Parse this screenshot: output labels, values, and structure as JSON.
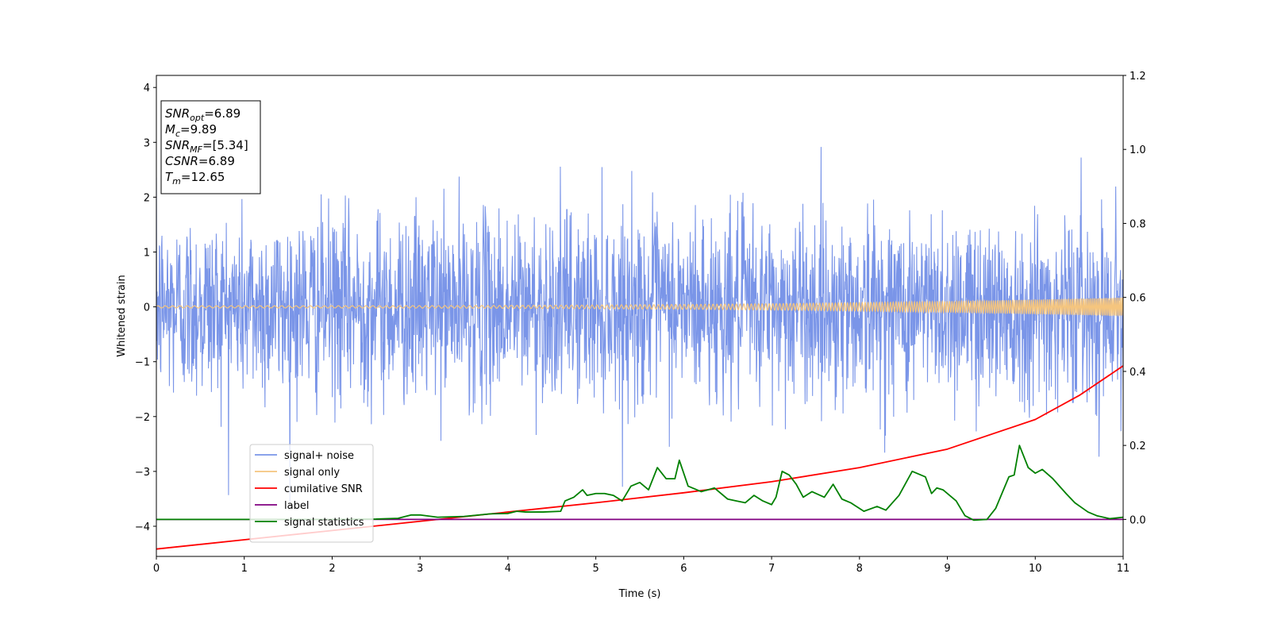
{
  "chart_data": {
    "type": "line",
    "xlabel": "Time (s)",
    "ylabel": "Whitened strain",
    "xlim": [
      0,
      11
    ],
    "ylim": [
      -4.55,
      4.22
    ],
    "y2lim": [
      -0.1,
      1.2
    ],
    "xticks": [
      "0",
      "1",
      "2",
      "3",
      "4",
      "5",
      "6",
      "7",
      "8",
      "9",
      "10",
      "11"
    ],
    "yticks": [
      "−4",
      "−3",
      "−2",
      "−1",
      "0",
      "1",
      "2",
      "3",
      "4"
    ],
    "y2ticks": [
      "0.0",
      "0.2",
      "0.4",
      "0.6",
      "0.8",
      "1.0",
      "1.2"
    ],
    "annotation": {
      "lines": [
        {
          "var": "SNR",
          "sub": "opt",
          "value": "=6.89"
        },
        {
          "var": "M",
          "sub": "c",
          "value": "=9.89"
        },
        {
          "var": "SNR",
          "sub": "MF",
          "value": "=[5.34]"
        },
        {
          "var": "CSNR",
          "sub": "",
          "value": "=6.89"
        },
        {
          "var": "T",
          "sub": "m",
          "value": "=12.65"
        }
      ]
    },
    "legend_placement": "lower-left",
    "series": [
      {
        "name": "signal+ noise",
        "color": "#7a95e8",
        "axis": "left",
        "kind": "noise",
        "std": 0.85,
        "approx_range": [
          -4.15,
          3.78
        ]
      },
      {
        "name": "signal only",
        "color": "#f5c57e",
        "axis": "left",
        "kind": "chirp",
        "amplitude_start": 0.02,
        "amplitude_end": 0.17
      },
      {
        "name": "cumilative SNR",
        "color": "#ff0000",
        "axis": "right",
        "x": [
          0,
          1,
          2,
          3,
          4,
          5,
          6,
          7,
          8,
          9,
          10,
          10.5,
          11
        ],
        "values": [
          -0.08,
          -0.055,
          -0.03,
          -0.005,
          0.02,
          0.045,
          0.072,
          0.102,
          0.14,
          0.19,
          0.27,
          0.335,
          0.415
        ]
      },
      {
        "name": "label",
        "color": "#800080",
        "axis": "right",
        "x": [
          0,
          11
        ],
        "values": [
          0.0,
          0.0
        ]
      },
      {
        "name": "signal statistics",
        "color": "#008000",
        "axis": "right",
        "x": [
          0,
          1,
          2,
          2.5,
          2.75,
          2.9,
          3.0,
          3.2,
          3.5,
          3.8,
          4.0,
          4.1,
          4.2,
          4.4,
          4.6,
          4.65,
          4.75,
          4.85,
          4.9,
          5.0,
          5.1,
          5.2,
          5.3,
          5.4,
          5.5,
          5.6,
          5.7,
          5.8,
          5.9,
          5.95,
          6.05,
          6.2,
          6.35,
          6.5,
          6.6,
          6.7,
          6.8,
          6.9,
          7.0,
          7.05,
          7.12,
          7.2,
          7.28,
          7.36,
          7.46,
          7.6,
          7.7,
          7.8,
          7.9,
          8.05,
          8.2,
          8.3,
          8.45,
          8.6,
          8.75,
          8.82,
          8.88,
          8.95,
          9.1,
          9.2,
          9.3,
          9.45,
          9.55,
          9.7,
          9.76,
          9.82,
          9.92,
          10.0,
          10.08,
          10.2,
          10.35,
          10.45,
          10.6,
          10.7,
          10.85,
          11.0
        ],
        "values": [
          0.0,
          0.0,
          0.0,
          0.001,
          0.003,
          0.012,
          0.012,
          0.006,
          0.008,
          0.015,
          0.016,
          0.022,
          0.02,
          0.02,
          0.022,
          0.05,
          0.06,
          0.08,
          0.065,
          0.07,
          0.07,
          0.065,
          0.05,
          0.09,
          0.1,
          0.08,
          0.14,
          0.11,
          0.11,
          0.16,
          0.09,
          0.075,
          0.085,
          0.055,
          0.05,
          0.045,
          0.065,
          0.05,
          0.04,
          0.06,
          0.13,
          0.12,
          0.095,
          0.06,
          0.075,
          0.06,
          0.095,
          0.055,
          0.045,
          0.022,
          0.035,
          0.025,
          0.065,
          0.13,
          0.115,
          0.07,
          0.085,
          0.08,
          0.05,
          0.01,
          -0.002,
          0.0,
          0.03,
          0.115,
          0.12,
          0.2,
          0.14,
          0.125,
          0.135,
          0.11,
          0.07,
          0.045,
          0.02,
          0.01,
          0.002,
          0.006
        ]
      }
    ]
  }
}
